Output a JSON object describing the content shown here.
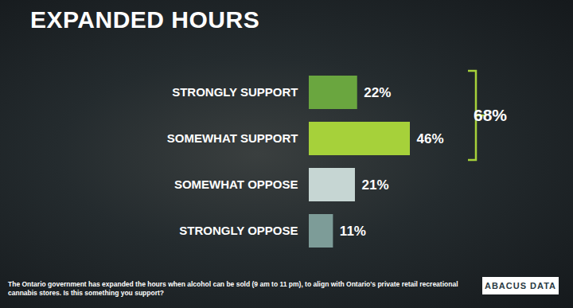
{
  "chart_data": {
    "type": "bar",
    "orientation": "horizontal",
    "title": "EXPANDED HOURS",
    "categories": [
      "STRONGLY SUPPORT",
      "SOMEWHAT SUPPORT",
      "SOMEWHAT OPPOSE",
      "STRONGLY OPPOSE"
    ],
    "values": [
      22,
      46,
      21,
      11
    ],
    "value_labels": [
      "22%",
      "46%",
      "21%",
      "11%"
    ],
    "colors": [
      "#6aa63f",
      "#a6d13a",
      "#c6d6d3",
      "#7d9c98"
    ],
    "data_labels": true,
    "tick_labels": "y",
    "annotations": [
      {
        "label": "68%",
        "categories": [
          "STRONGLY SUPPORT",
          "SOMEWHAT SUPPORT"
        ]
      }
    ],
    "caption": "The Ontario government has expanded the hours when alcohol can be sold (9 am to 11 pm), to align with Ontario's private retail recreational cannabis stores. Is this something you support?",
    "source": "ABACUS DATA"
  }
}
